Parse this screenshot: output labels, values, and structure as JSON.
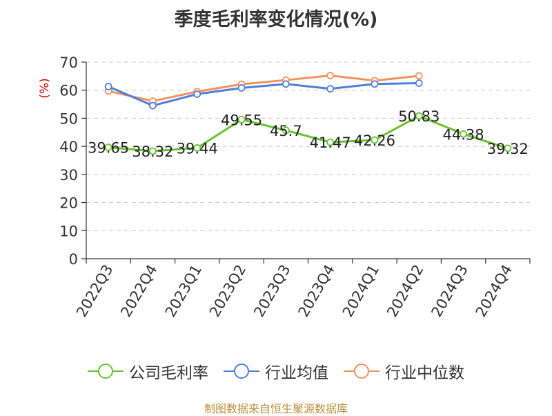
{
  "title": "季度毛利率变化情况(%)",
  "source": "制图数据来自恒生聚源数据库",
  "chart_data": {
    "type": "line",
    "title": "季度毛利率变化情况(%)",
    "ylabel": "(%)",
    "xlabel": "",
    "ylim": [
      0,
      70
    ],
    "yticks": [
      0,
      10,
      20,
      30,
      40,
      50,
      60,
      70
    ],
    "grid": true,
    "legend_position": "bottom",
    "categories": [
      "2022Q3",
      "2022Q4",
      "2023Q1",
      "2023Q2",
      "2023Q3",
      "2023Q4",
      "2024Q1",
      "2024Q2",
      "2024Q3",
      "2024Q4"
    ],
    "series": [
      {
        "name": "公司毛利率",
        "color": "#66c22e",
        "values": [
          39.65,
          38.32,
          39.44,
          49.55,
          45.7,
          41.47,
          42.26,
          50.83,
          44.38,
          39.32
        ],
        "labels": [
          "39.65",
          "38.32",
          "39.44",
          "49.55",
          "45.7",
          "41.47",
          "42.26",
          "50.83",
          "44.38",
          "39.32"
        ],
        "show_labels": true
      },
      {
        "name": "行业均值",
        "color": "#4d7fdb",
        "values": [
          61.3,
          54.5,
          58.6,
          60.8,
          62.2,
          60.5,
          62.2,
          62.5,
          null,
          null
        ],
        "show_labels": false
      },
      {
        "name": "行业中位数",
        "color": "#f7905e",
        "values": [
          59.7,
          56.1,
          59.5,
          62.1,
          63.6,
          65.2,
          63.4,
          65.1,
          null,
          null
        ],
        "show_labels": false
      }
    ]
  }
}
